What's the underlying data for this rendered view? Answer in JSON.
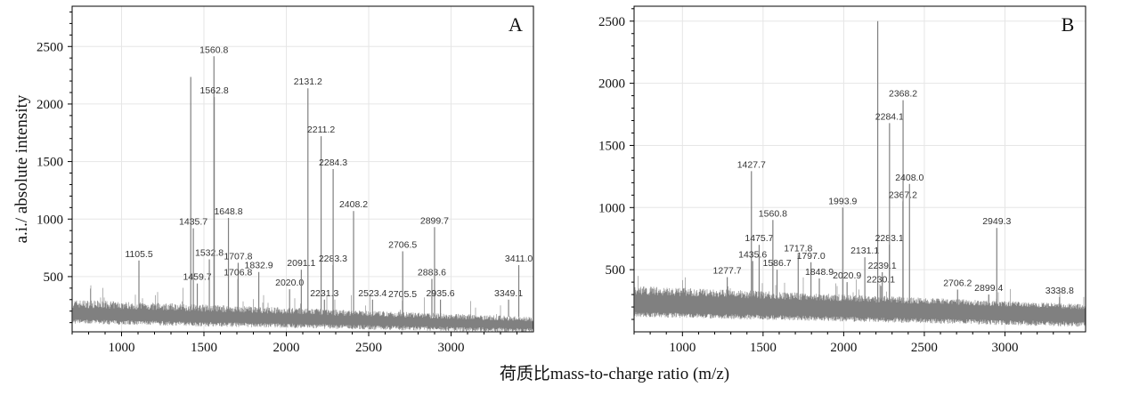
{
  "chart_data": [
    {
      "type": "bar",
      "panel_label": "A",
      "xlim": [
        700,
        3500
      ],
      "ylim": [
        20,
        2850
      ],
      "xticks": [
        1000,
        1500,
        2000,
        2500,
        3000
      ],
      "yticks": [
        500,
        1000,
        1500,
        2000,
        2500
      ],
      "grid": true,
      "peaks": [
        {
          "mz": 1105.5,
          "intensity": 640,
          "label": "1105.5"
        },
        {
          "mz": 1420.0,
          "intensity": 2235,
          "label": ""
        },
        {
          "mz": 1435.7,
          "intensity": 920,
          "label": "1435.7"
        },
        {
          "mz": 1459.7,
          "intensity": 440,
          "label": "1459.7"
        },
        {
          "mz": 1532.8,
          "intensity": 650,
          "label": "1532.8"
        },
        {
          "mz": 1560.8,
          "intensity": 2415,
          "label": "1560.8"
        },
        {
          "mz": 1562.8,
          "intensity": 2060,
          "label": "1562.8"
        },
        {
          "mz": 1648.8,
          "intensity": 1010,
          "label": "1648.8"
        },
        {
          "mz": 1707.8,
          "intensity": 620,
          "label": "1707.8"
        },
        {
          "mz": 1706.8,
          "intensity": 480,
          "label": "1706.8"
        },
        {
          "mz": 1832.9,
          "intensity": 540,
          "label": "1832.9"
        },
        {
          "mz": 2020.0,
          "intensity": 390,
          "label": "2020.0"
        },
        {
          "mz": 2091.1,
          "intensity": 560,
          "label": "2091.1"
        },
        {
          "mz": 2131.2,
          "intensity": 2137,
          "label": "2131.2"
        },
        {
          "mz": 2211.2,
          "intensity": 1720,
          "label": "2211.2"
        },
        {
          "mz": 2231.3,
          "intensity": 300,
          "label": "2231.3"
        },
        {
          "mz": 2283.3,
          "intensity": 600,
          "label": "2283.3"
        },
        {
          "mz": 2284.3,
          "intensity": 1435,
          "label": "2284.3"
        },
        {
          "mz": 2408.2,
          "intensity": 1070,
          "label": "2408.2"
        },
        {
          "mz": 2523.4,
          "intensity": 300,
          "label": "2523.4"
        },
        {
          "mz": 2705.5,
          "intensity": 290,
          "label": "2705.5"
        },
        {
          "mz": 2706.5,
          "intensity": 720,
          "label": "2706.5"
        },
        {
          "mz": 2883.6,
          "intensity": 480,
          "label": "2883.6"
        },
        {
          "mz": 2899.7,
          "intensity": 930,
          "label": "2899.7"
        },
        {
          "mz": 2935.6,
          "intensity": 300,
          "label": "2935.6"
        },
        {
          "mz": 3349.1,
          "intensity": 300,
          "label": "3349.1"
        },
        {
          "mz": 3411.0,
          "intensity": 600,
          "label": "3411.0"
        }
      ]
    },
    {
      "type": "bar",
      "panel_label": "B",
      "xlim": [
        700,
        3500
      ],
      "ylim": [
        0,
        2620
      ],
      "xticks": [
        1000,
        1500,
        2000,
        2500,
        3000
      ],
      "yticks": [
        500,
        1000,
        1500,
        2000,
        2500
      ],
      "grid": true,
      "peaks": [
        {
          "mz": 1277.7,
          "intensity": 440,
          "label": "1277.7"
        },
        {
          "mz": 1427.7,
          "intensity": 1293,
          "label": "1427.7"
        },
        {
          "mz": 1435.6,
          "intensity": 570,
          "label": "1435.6"
        },
        {
          "mz": 1475.7,
          "intensity": 700,
          "label": "1475.7"
        },
        {
          "mz": 1560.8,
          "intensity": 900,
          "label": "1560.8"
        },
        {
          "mz": 1586.7,
          "intensity": 500,
          "label": "1586.7"
        },
        {
          "mz": 1717.8,
          "intensity": 620,
          "label": "1717.8"
        },
        {
          "mz": 1797.0,
          "intensity": 560,
          "label": "1797.0"
        },
        {
          "mz": 1848.9,
          "intensity": 430,
          "label": "1848.9"
        },
        {
          "mz": 1993.9,
          "intensity": 1000,
          "label": "1993.9"
        },
        {
          "mz": 2020.9,
          "intensity": 400,
          "label": "2020.9"
        },
        {
          "mz": 2131.1,
          "intensity": 600,
          "label": "2131.1"
        },
        {
          "mz": 2211.0,
          "intensity": 2500,
          "label": ""
        },
        {
          "mz": 2230.1,
          "intensity": 370,
          "label": "2230.1"
        },
        {
          "mz": 2239.1,
          "intensity": 480,
          "label": "2239.1"
        },
        {
          "mz": 2283.1,
          "intensity": 700,
          "label": "2283.1"
        },
        {
          "mz": 2284.1,
          "intensity": 1680,
          "label": "2284.1"
        },
        {
          "mz": 2367.2,
          "intensity": 1050,
          "label": "2367.2"
        },
        {
          "mz": 2368.2,
          "intensity": 1864,
          "label": "2368.2"
        },
        {
          "mz": 2408.0,
          "intensity": 1190,
          "label": "2408.0"
        },
        {
          "mz": 2706.2,
          "intensity": 340,
          "label": "2706.2"
        },
        {
          "mz": 2899.4,
          "intensity": 300,
          "label": "2899.4"
        },
        {
          "mz": 2949.3,
          "intensity": 836,
          "label": "2949.3"
        },
        {
          "mz": 3338.8,
          "intensity": 280,
          "label": "3338.8"
        }
      ]
    }
  ],
  "axes": {
    "ylabel": "a.i./ absolute intensity",
    "xlabel": "荷质比mass-to-charge ratio (m/z)"
  },
  "colors": {
    "trace": "#808080",
    "grid": "#e6e6e6",
    "axis": "#000000"
  }
}
